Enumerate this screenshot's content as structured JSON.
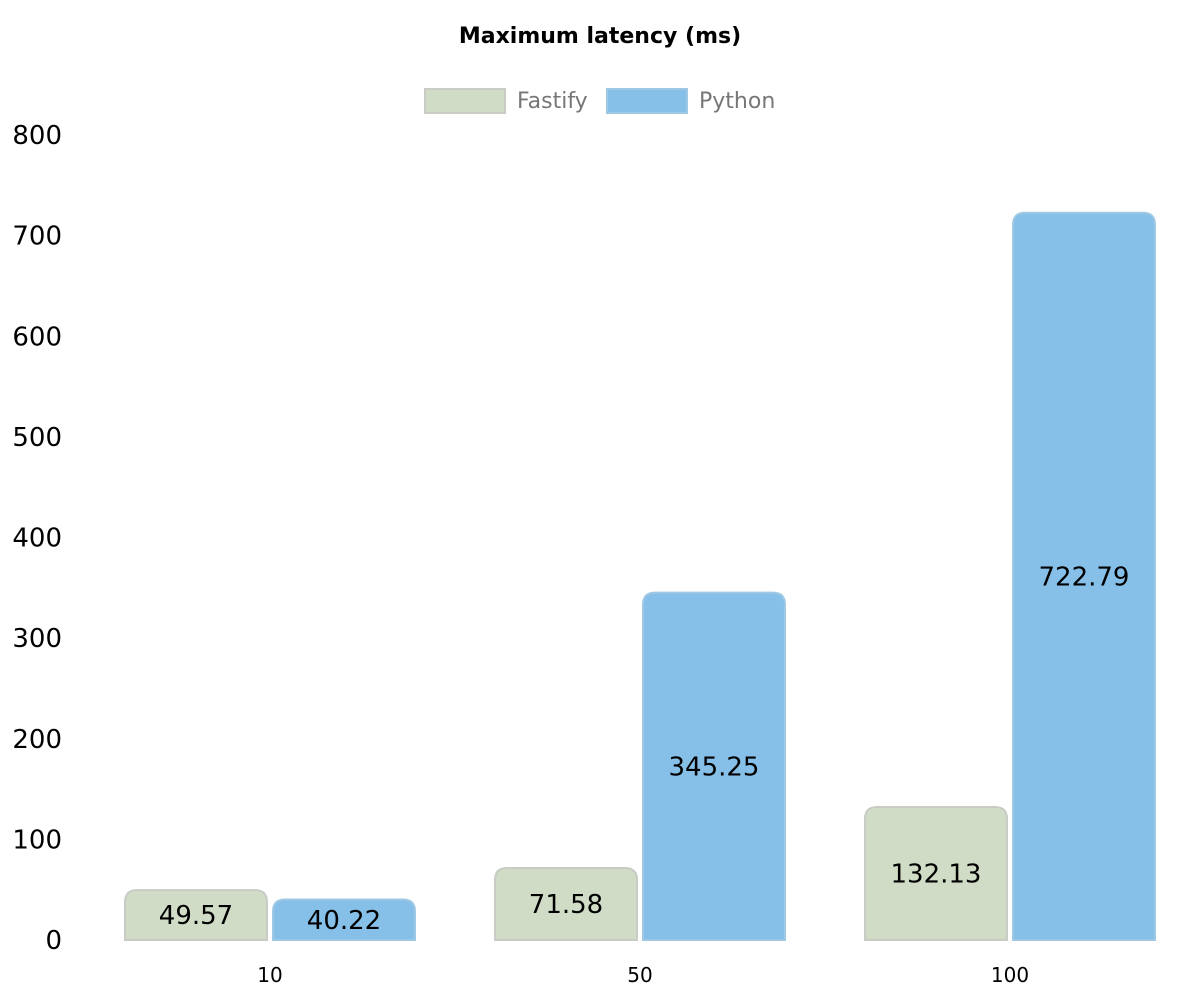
{
  "chart_data": {
    "type": "bar",
    "title": "Maximum latency (ms)",
    "categories": [
      "10",
      "50",
      "100"
    ],
    "series": [
      {
        "name": "Fastify",
        "values": [
          49.57,
          71.58,
          132.13
        ]
      },
      {
        "name": "Python",
        "values": [
          40.22,
          345.25,
          722.79
        ]
      }
    ],
    "data_labels": [
      [
        "49.57",
        "71.58",
        "132.13"
      ],
      [
        "40.22",
        "345.25",
        "722.79"
      ]
    ],
    "ylim": [
      0,
      800
    ],
    "yticks": [
      "0",
      "100",
      "200",
      "300",
      "400",
      "500",
      "600",
      "700",
      "800"
    ],
    "xlabel": "",
    "ylabel": "",
    "grid": false,
    "legend_position": "top-center"
  },
  "colors": {
    "series_fill": [
      "#d0dcc6",
      "#86c0e8"
    ],
    "series_stroke": [
      "#c8ccc4",
      "#9ec8e4"
    ],
    "text": "#000000",
    "legend_text": "#777777"
  }
}
